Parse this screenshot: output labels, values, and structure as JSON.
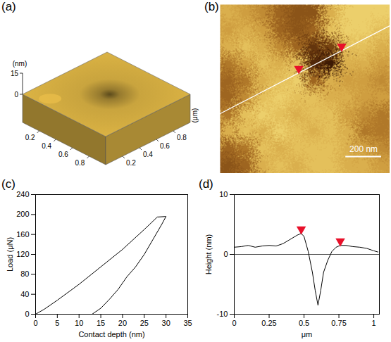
{
  "chart_data": [
    {
      "panel": "(a)",
      "type": "surface3d",
      "color": "#c9a43e",
      "xlim": [
        0,
        1
      ],
      "xticks": [
        0.2,
        0.4,
        0.6,
        0.8
      ],
      "ylim": [
        0,
        1
      ],
      "yticks": [
        0.2,
        0.4,
        0.6,
        0.8
      ],
      "ylabel": "(μm)",
      "zlim": [
        0,
        15
      ],
      "zticks": [
        0,
        15
      ],
      "zlabel": "(nm)"
    },
    {
      "panel": "(b)",
      "type": "image",
      "tick_labels": false,
      "xlim": [
        0,
        0.95
      ],
      "ylim": [
        0,
        0.92
      ],
      "zlim": [
        -8,
        4
      ],
      "colormap": [
        "#3d1a04",
        "#8c4f14",
        "#d6a13c",
        "#f3df7a"
      ],
      "cells": [
        [
          1,
          0,
          -1,
          -3,
          -4,
          -4,
          1,
          3,
          3,
          3
        ],
        [
          0,
          1,
          0,
          -3,
          -4,
          -3,
          2,
          3,
          3,
          2
        ],
        [
          1,
          2,
          1,
          -1,
          -3,
          -6,
          -5,
          2,
          2,
          1
        ],
        [
          -2,
          0,
          2,
          1,
          2,
          -7,
          -8,
          1,
          1,
          0
        ],
        [
          -3,
          -2,
          1,
          2,
          3,
          -3,
          1,
          0,
          0,
          -1
        ],
        [
          -3,
          -1,
          2,
          3,
          2,
          2,
          1,
          1,
          0,
          0
        ],
        [
          -2,
          2,
          3,
          2,
          1,
          2,
          2,
          0,
          -1,
          -2
        ],
        [
          1,
          2,
          1,
          3,
          2,
          1,
          2,
          1,
          -2,
          -2
        ],
        [
          -3,
          -2,
          2,
          1,
          2,
          2,
          2,
          1,
          0,
          -1
        ],
        [
          -4,
          -3,
          1,
          2,
          1,
          2,
          2,
          1,
          1,
          0
        ]
      ],
      "line": {
        "x": [
          0,
          0.95
        ],
        "y": [
          0.594,
          0.115
        ],
        "color": "#ffffff"
      },
      "markers": {
        "x": [
          0.44,
          0.68
        ],
        "y": [
          0.372,
          0.251
        ],
        "color": "#e8102a",
        "marker": "triangle"
      },
      "scale_bar": {
        "length": 0.2,
        "label": "200 nm"
      }
    },
    {
      "panel": "(c)",
      "type": "line",
      "color": "#000000",
      "xlabel": "Contact depth (nm)",
      "ylabel": "Load (μN)",
      "x": [
        0,
        2,
        5,
        10,
        15,
        20,
        25,
        28,
        30,
        29,
        27,
        25,
        23,
        21,
        19,
        17,
        15,
        13
      ],
      "values": [
        0,
        10,
        28,
        60,
        95,
        130,
        170,
        195,
        196,
        180,
        150,
        120,
        95,
        75,
        50,
        30,
        12,
        0
      ],
      "xlim": [
        0,
        35
      ],
      "xticks": [
        0,
        5,
        10,
        15,
        20,
        25,
        30,
        35
      ],
      "ylim": [
        0,
        240
      ],
      "yticks": [
        0,
        40,
        80,
        120,
        160,
        200,
        240
      ]
    },
    {
      "panel": "(d)",
      "type": "line",
      "color": "#000000",
      "xlabel": "μm",
      "ylabel": "Height (nm)",
      "x": [
        0,
        0.05,
        0.1,
        0.15,
        0.2,
        0.25,
        0.3,
        0.35,
        0.4,
        0.45,
        0.48,
        0.5,
        0.53,
        0.56,
        0.58,
        0.6,
        0.62,
        0.64,
        0.67,
        0.7,
        0.73,
        0.76,
        0.8,
        0.85,
        0.9,
        0.95,
        1.0,
        1.03
      ],
      "values": [
        1.2,
        1.3,
        1.5,
        1.2,
        1.4,
        1.5,
        1.4,
        1.8,
        2.5,
        3.2,
        3.5,
        3,
        0.5,
        -3,
        -6,
        -8.5,
        -6,
        -3,
        -1,
        0.5,
        1.2,
        1.5,
        1.5,
        1.3,
        1.2,
        1,
        0.6,
        0.4
      ],
      "xlim": [
        0,
        1.04
      ],
      "xticks": [
        0,
        0.25,
        0.5,
        0.75,
        1
      ],
      "ylim": [
        -10,
        10
      ],
      "yticks": [
        -10,
        0,
        10
      ],
      "baseline": 0,
      "markers": {
        "x": [
          0.48,
          0.76
        ],
        "y": [
          3.5,
          1.5
        ],
        "color": "#e8102a",
        "marker": "triangle"
      }
    }
  ]
}
